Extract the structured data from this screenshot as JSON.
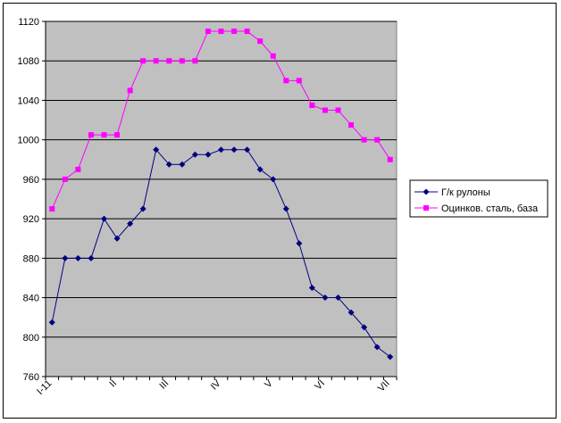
{
  "chart_data": {
    "type": "line",
    "x": [
      "I-11",
      "",
      "",
      "",
      "",
      "II",
      "",
      "",
      "",
      "III",
      "",
      "",
      "",
      "IV",
      "",
      "",
      "",
      "V",
      "",
      "",
      "",
      "VI",
      "",
      "",
      "",
      "",
      "VII"
    ],
    "x_tick_labels": [
      "I-11",
      "II",
      "III",
      "IV",
      "V",
      "VI",
      "VII"
    ],
    "ylim": [
      760,
      1120
    ],
    "y_ticks": [
      "760",
      "800",
      "840",
      "880",
      "920",
      "960",
      "1000",
      "1040",
      "1080",
      "1120"
    ],
    "grid": true,
    "legend_position": "right",
    "plot_background": "#c0c0c0",
    "series": [
      {
        "name": "Г/к рулоны",
        "color": "#000080",
        "marker": "diamond",
        "values": [
          815,
          880,
          880,
          880,
          920,
          900,
          915,
          930,
          990,
          975,
          975,
          985,
          985,
          990,
          990,
          990,
          970,
          960,
          930,
          895,
          850,
          840,
          840,
          825,
          810,
          790,
          780
        ]
      },
      {
        "name": "Оцинков. сталь, база",
        "color": "#ff00ff",
        "marker": "square",
        "values": [
          930,
          960,
          970,
          1005,
          1005,
          1005,
          1050,
          1080,
          1080,
          1080,
          1080,
          1080,
          1110,
          1110,
          1110,
          1110,
          1100,
          1085,
          1060,
          1060,
          1035,
          1030,
          1030,
          1015,
          1000,
          1000,
          980
        ]
      }
    ]
  }
}
